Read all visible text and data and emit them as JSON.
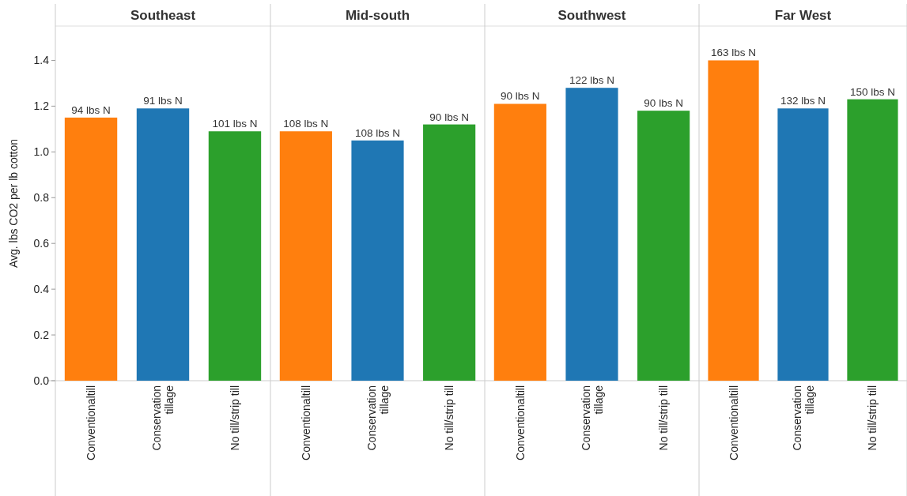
{
  "chart_data": [
    {
      "type": "bar",
      "title": "Southeast",
      "ylabel": "Avg. lbs CO2 per lb cotton",
      "categories": [
        "Conventionaltill",
        "Conservation tillage",
        "No till/strip till"
      ],
      "values": [
        1.15,
        1.19,
        1.09
      ],
      "colors": [
        "#ff7f0e",
        "#1f77b4",
        "#2ca02c"
      ],
      "annotations": [
        {
          "text": "94 lbs N",
          "x": "Conventionaltill",
          "y": 1.15
        },
        {
          "text": "91 lbs N",
          "x": "Conservation tillage",
          "y": 1.19
        },
        {
          "text": "101 lbs N",
          "x": "No till/strip till",
          "y": 1.09
        }
      ],
      "ylim": [
        0,
        1.55
      ],
      "yticks": [
        {
          "value": 0,
          "label": "0.0"
        },
        0.2,
        0.4,
        0.6,
        0.8,
        {
          "value": 1,
          "label": "1.0"
        },
        1.2,
        1.4
      ],
      "grid": false
    },
    {
      "type": "bar",
      "title": "Mid-south",
      "categories": [
        "Conventionaltill",
        "Conservation tillage",
        "No till/strip till"
      ],
      "values": [
        1.09,
        1.05,
        1.12
      ],
      "colors": [
        "#ff7f0e",
        "#1f77b4",
        "#2ca02c"
      ],
      "annotations": [
        {
          "text": "108 lbs N",
          "x": "Conventionaltill",
          "y": 1.09
        },
        {
          "text": "108 lbs N",
          "x": "Conservation tillage",
          "y": 1.05
        },
        {
          "text": "90 lbs N",
          "x": "No till/strip till",
          "y": 1.12
        }
      ],
      "ylim": [
        0,
        1.55
      ],
      "tick_labels": "x",
      "grid": false
    },
    {
      "type": "bar",
      "title": "Southwest",
      "categories": [
        "Conventionaltill",
        "Conservation tillage",
        "No till/strip till"
      ],
      "values": [
        1.21,
        1.28,
        1.18
      ],
      "colors": [
        "#ff7f0e",
        "#1f77b4",
        "#2ca02c"
      ],
      "annotations": [
        {
          "text": "90 lbs N",
          "x": "Conventionaltill",
          "y": 1.21
        },
        {
          "text": "122 lbs N",
          "x": "Conservation tillage",
          "y": 1.28
        },
        {
          "text": "90 lbs N",
          "x": "No till/strip till",
          "y": 1.18
        }
      ],
      "ylim": [
        0,
        1.55
      ],
      "tick_labels": "x",
      "grid": false
    },
    {
      "type": "bar",
      "title": "Far West",
      "categories": [
        "Conventionaltill",
        "Conservation tillage",
        "No till/strip till"
      ],
      "values": [
        1.4,
        1.19,
        1.23
      ],
      "colors": [
        "#ff7f0e",
        "#1f77b4",
        "#2ca02c"
      ],
      "annotations": [
        {
          "text": "163 lbs N",
          "x": "Conventionaltill",
          "y": 1.4
        },
        {
          "text": "132 lbs N",
          "x": "Conservation tillage",
          "y": 1.19
        },
        {
          "text": "150 lbs N",
          "x": "No till/strip till",
          "y": 1.23
        }
      ],
      "ylim": [
        0,
        1.55
      ],
      "tick_labels": "x",
      "grid": false
    }
  ]
}
